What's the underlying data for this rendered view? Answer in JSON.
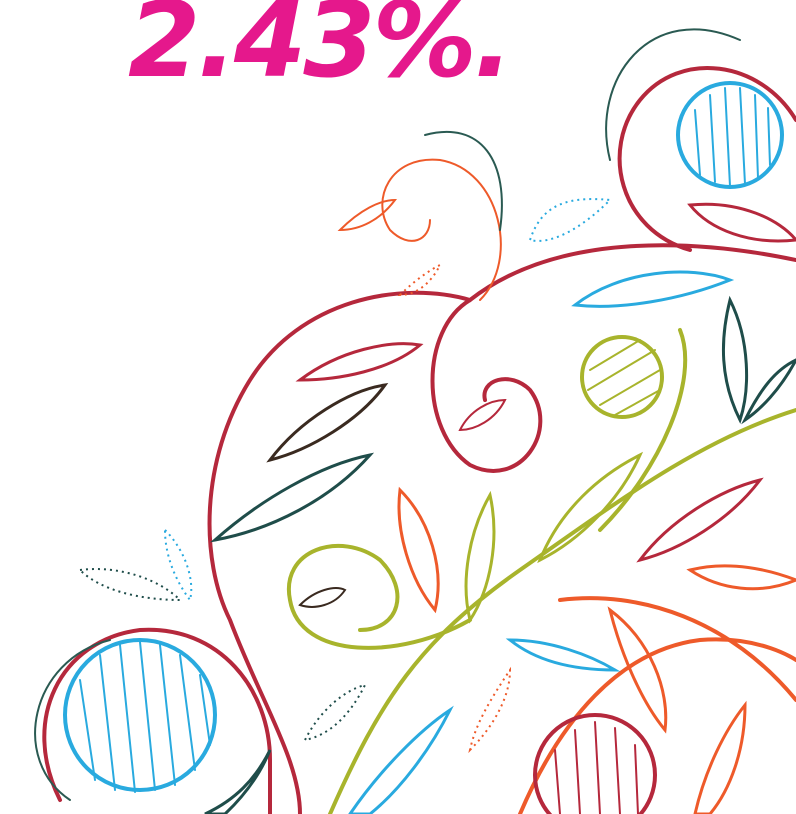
{
  "headline": {
    "text": "2.43%."
  }
}
